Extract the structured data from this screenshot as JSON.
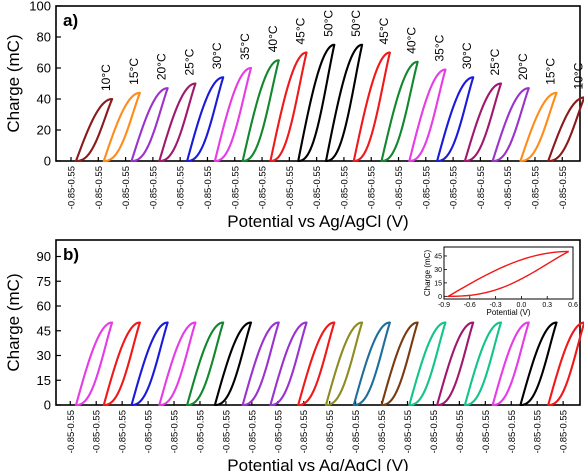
{
  "chart_data": [
    {
      "type": "line",
      "panel_label": "a)",
      "xlabel": "Potential vs Ag/AgCl (V)",
      "ylabel": "Charge (mC)",
      "ylim": [
        0,
        100
      ],
      "yticks": [
        "0",
        "20",
        "40",
        "60",
        "80",
        "100"
      ],
      "x_tick_label": "-0.85-0.55",
      "x_tick_count": 19,
      "x_range_per_cycle_V": [
        -0.85,
        0.55
      ],
      "series": [
        {
          "label": "10°C",
          "peak_charge": 40,
          "color": "#8B1A1A"
        },
        {
          "label": "15°C",
          "peak_charge": 44,
          "color": "#FF8C1A"
        },
        {
          "label": "20°C",
          "peak_charge": 47,
          "color": "#9A33CC"
        },
        {
          "label": "25°C",
          "peak_charge": 50,
          "color": "#A0186E"
        },
        {
          "label": "30°C",
          "peak_charge": 54,
          "color": "#1A1ADB"
        },
        {
          "label": "35°C",
          "peak_charge": 60,
          "color": "#E63BE6"
        },
        {
          "label": "40°C",
          "peak_charge": 65,
          "color": "#11872E"
        },
        {
          "label": "45°C",
          "peak_charge": 70,
          "color": "#F01818"
        },
        {
          "label": "50°C",
          "peak_charge": 75,
          "color": "#000000"
        },
        {
          "label": "50°C",
          "peak_charge": 75,
          "color": "#000000"
        },
        {
          "label": "45°C",
          "peak_charge": 70,
          "color": "#F01818"
        },
        {
          "label": "40°C",
          "peak_charge": 64,
          "color": "#11872E"
        },
        {
          "label": "35°C",
          "peak_charge": 59,
          "color": "#E63BE6"
        },
        {
          "label": "30°C",
          "peak_charge": 54,
          "color": "#1A1ADB"
        },
        {
          "label": "25°C",
          "peak_charge": 50,
          "color": "#A0186E"
        },
        {
          "label": "20°C",
          "peak_charge": 47,
          "color": "#9A33CC"
        },
        {
          "label": "15°C",
          "peak_charge": 44,
          "color": "#FF8C1A"
        },
        {
          "label": "10°C",
          "peak_charge": 41,
          "color": "#8B1A1A"
        }
      ]
    },
    {
      "type": "line",
      "panel_label": "b)",
      "xlabel": "Potential vs Ag/AgCl (V)",
      "ylabel": "Charge (mC)",
      "ylim": [
        0,
        100
      ],
      "yticks": [
        "0",
        "15",
        "30",
        "45",
        "60",
        "75",
        "90"
      ],
      "x_tick_label": "-0.85-0.55",
      "x_tick_count": 20,
      "x_range_per_cycle_V": [
        -0.85,
        0.55
      ],
      "series": [
        {
          "peak_charge": 50,
          "color": "#E63BE6"
        },
        {
          "peak_charge": 50,
          "color": "#F01818"
        },
        {
          "peak_charge": 50,
          "color": "#1A1ADB"
        },
        {
          "peak_charge": 50,
          "color": "#E63BE6"
        },
        {
          "peak_charge": 50,
          "color": "#11872E"
        },
        {
          "peak_charge": 50,
          "color": "#000000"
        },
        {
          "peak_charge": 50,
          "color": "#9A33CC"
        },
        {
          "peak_charge": 50,
          "color": "#9A33CC"
        },
        {
          "peak_charge": 50,
          "color": "#F01818"
        },
        {
          "peak_charge": 50,
          "color": "#8C8C22"
        },
        {
          "peak_charge": 50,
          "color": "#1E6E9A"
        },
        {
          "peak_charge": 50,
          "color": "#7A3A10"
        },
        {
          "peak_charge": 50,
          "color": "#13C48A"
        },
        {
          "peak_charge": 50,
          "color": "#A0186E"
        },
        {
          "peak_charge": 50,
          "color": "#13C48A"
        },
        {
          "peak_charge": 50,
          "color": "#E63BE6"
        },
        {
          "peak_charge": 50,
          "color": "#000000"
        },
        {
          "peak_charge": 50,
          "color": "#F01818"
        }
      ],
      "inset": {
        "xlabel": "Potential (V)",
        "ylabel": "Charge (mC)",
        "xticks": [
          "-0.9",
          "-0.6",
          "-0.3",
          "0.0",
          "0.3",
          "0.6"
        ],
        "yticks": [
          "0",
          "15",
          "30",
          "45"
        ],
        "xlim": [
          -0.9,
          0.6
        ],
        "ylim": [
          -3,
          55
        ],
        "x_range_V": [
          -0.85,
          0.55
        ],
        "peak_charge": 50,
        "color": "#F01818"
      }
    }
  ]
}
